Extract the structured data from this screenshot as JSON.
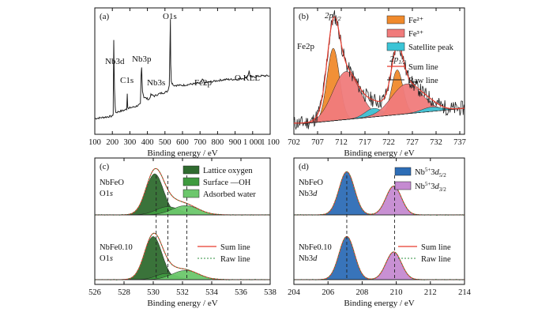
{
  "chart_data": [
    {
      "type": "line",
      "panel": "(a)",
      "xlabel": "Binding energy / eV",
      "ylabel": "",
      "xlim": [
        100,
        1100
      ],
      "ylim": [
        0,
        100
      ],
      "x_ticks": [
        "100",
        "200",
        "300",
        "400",
        "500",
        "600",
        "700",
        "800",
        "900",
        "1 000",
        "1 100"
      ],
      "x_tick_values": [
        100,
        200,
        300,
        400,
        500,
        600,
        700,
        800,
        900,
        1000,
        1100
      ],
      "series": [
        {
          "x": [
            100,
            150,
            200,
            205,
            208,
            212,
            216,
            220,
            240,
            270,
            282,
            285,
            288,
            292,
            300,
            330,
            360,
            364,
            367,
            372,
            380,
            410,
            420,
            440,
            470,
            500,
            515,
            525,
            531,
            533,
            536,
            540,
            550,
            600,
            650,
            700,
            711,
            715,
            725,
            760,
            800,
            850,
            900,
            950,
            970,
            976,
            980,
            985,
            990,
            1000,
            1050,
            1100
          ],
          "y": [
            12,
            13,
            14,
            16,
            78,
            38,
            22,
            17,
            18,
            19,
            20,
            33,
            22,
            20,
            21,
            22,
            24,
            48,
            55,
            35,
            30,
            28,
            32,
            31,
            33,
            34,
            35,
            40,
            96,
            58,
            44,
            42,
            40,
            40,
            41,
            42,
            44,
            45,
            42,
            43,
            44,
            45,
            45,
            46,
            47,
            50,
            52,
            48,
            47,
            47,
            48,
            48
          ]
        }
      ],
      "annotations": [
        "Nb3d",
        "C1s",
        "Nb3p",
        "Nb3s",
        "O1s",
        "Fe2p",
        "O KLL"
      ]
    },
    {
      "type": "area",
      "panel": "(b)",
      "xlabel": "Binding energy / eV",
      "xlim": [
        702,
        738
      ],
      "ylim": [
        0,
        100
      ],
      "x_ticks": [
        "702",
        "707",
        "712",
        "717",
        "722",
        "727",
        "732",
        "737"
      ],
      "x_tick_values": [
        702,
        707,
        712,
        717,
        722,
        727,
        732,
        737
      ],
      "series_label": "Fe2p",
      "peak_labels": [
        "2p3/2",
        "2p1/2"
      ],
      "legend": [
        "Fe²⁺",
        "Fe³⁺",
        "Satellite peak",
        "Sum line",
        "Raw line"
      ],
      "components": [
        {
          "name": "Fe²⁺",
          "center": 710.3,
          "sigma": 1.3,
          "height": 68
        },
        {
          "name": "Fe³⁺",
          "center": 713.0,
          "sigma": 2.8,
          "height": 45
        },
        {
          "name": "Satellite peak",
          "center": 718.8,
          "sigma": 1.8,
          "height": 8
        },
        {
          "name": "Fe²⁺",
          "center": 723.8,
          "sigma": 1.2,
          "height": 42
        },
        {
          "name": "Fe³⁺",
          "center": 725.8,
          "sigma": 3.2,
          "height": 28
        },
        {
          "name": "Satellite peak",
          "center": 731.0,
          "sigma": 2.0,
          "height": 4
        }
      ],
      "background": {
        "start": 705,
        "end": 738,
        "low": 6,
        "high": 20
      }
    },
    {
      "type": "area",
      "panel": "(c)",
      "xlabel": "Binding energy / eV",
      "xlim": [
        526,
        538
      ],
      "ylim": [
        0,
        100
      ],
      "x_ticks": [
        "526",
        "528",
        "530",
        "532",
        "534",
        "536",
        "538"
      ],
      "x_tick_values": [
        526,
        528,
        530,
        532,
        534,
        536,
        538
      ],
      "legend": [
        "Lattice oxygen",
        "Surface —OH",
        "Adsorbed water",
        "Sum line",
        "Raw line"
      ],
      "dashed_lines": [
        530.2,
        531.0,
        532.3
      ],
      "spectra": [
        {
          "label_1": "NbFeO",
          "label_2": "O1s",
          "components": [
            {
              "name": "Lattice oxygen",
              "center": 530.1,
              "sigma": 0.6,
              "height": 40
            },
            {
              "name": "Surface —OH",
              "center": 531.0,
              "sigma": 0.8,
              "height": 8
            },
            {
              "name": "Adsorbed water",
              "center": 532.2,
              "sigma": 0.9,
              "height": 9
            }
          ]
        },
        {
          "label_1": "NbFe0.10",
          "label_2": "O1s",
          "components": [
            {
              "name": "Lattice oxygen",
              "center": 530.0,
              "sigma": 0.6,
              "height": 42
            },
            {
              "name": "Surface —OH",
              "center": 530.9,
              "sigma": 0.7,
              "height": 6
            },
            {
              "name": "Adsorbed water",
              "center": 532.2,
              "sigma": 0.9,
              "height": 9
            }
          ]
        }
      ]
    },
    {
      "type": "area",
      "panel": "(d)",
      "xlabel": "Binding energy / eV",
      "xlim": [
        204,
        214
      ],
      "ylim": [
        0,
        100
      ],
      "x_ticks": [
        "204",
        "206",
        "208",
        "210",
        "212",
        "214"
      ],
      "x_tick_values": [
        204,
        206,
        208,
        210,
        212,
        214
      ],
      "legend": [
        "Nb⁵⁺3d5/2",
        "Nb⁵⁺3d3/2",
        "Sum line",
        "Raw line"
      ],
      "dashed_lines": [
        207.1,
        209.9
      ],
      "spectra": [
        {
          "label_1": "NbFeO",
          "label_2": "Nb3d",
          "components": [
            {
              "name": "Nb⁵⁺3d5/2",
              "center": 207.1,
              "sigma": 0.45,
              "height": 42
            },
            {
              "name": "Nb⁵⁺3d3/2",
              "center": 209.85,
              "sigma": 0.45,
              "height": 28
            }
          ]
        },
        {
          "label_1": "NbFe0.10",
          "label_2": "Nb3d",
          "components": [
            {
              "name": "Nb⁵⁺3d5/2",
              "center": 207.1,
              "sigma": 0.45,
              "height": 42
            },
            {
              "name": "Nb⁵⁺3d3/2",
              "center": 209.85,
              "sigma": 0.45,
              "height": 27
            }
          ]
        }
      ]
    }
  ],
  "colors": {
    "fe2": "#f08a2c",
    "fe3": "#f07b7b",
    "satellite": "#3cc4d6",
    "lattice": "#2f6b2f",
    "surface_oh": "#3f9a3f",
    "water": "#6cc76c",
    "nb52": "#2d6db6",
    "nb32": "#c58ad1",
    "sum": "#e63b2e",
    "raw": "#222222"
  }
}
